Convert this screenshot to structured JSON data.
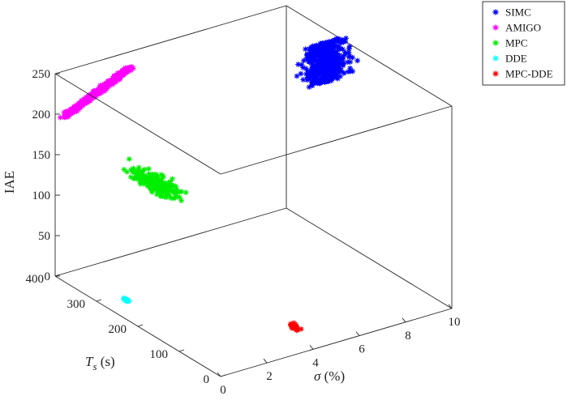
{
  "chart_data": {
    "type": "scatter3d",
    "title": "",
    "xlabel": "σ (%)",
    "ylabel": "T_s (s)",
    "zlabel": "IAE",
    "xlabel_parts": {
      "symbol": "σ",
      "unit": " (%)"
    },
    "ylabel_parts": {
      "symbol": "T",
      "sub": "s",
      "unit": " (s)"
    },
    "xlim": [
      0,
      10
    ],
    "ylim": [
      0,
      400
    ],
    "zlim": [
      0,
      250
    ],
    "xticks": [
      "0",
      "2",
      "4",
      "6",
      "8",
      "10"
    ],
    "yticks": [
      "0",
      "100",
      "200",
      "300",
      "400"
    ],
    "zticks": [
      "0",
      "50",
      "100",
      "150",
      "200",
      "250"
    ],
    "grid": false,
    "box": true,
    "legend_position": "top-right",
    "series": [
      {
        "name": "SIMC",
        "color": "#0000ff",
        "marker": "asterisk",
        "cluster": {
          "type": "line",
          "from": [
            9.0,
            250,
            210
          ],
          "to": [
            9.0,
            250,
            260
          ],
          "spread": 0.4,
          "points": 520
        }
      },
      {
        "name": "AMIGO",
        "color": "#ff00ff",
        "marker": "asterisk",
        "cluster": {
          "type": "line",
          "from": [
            0.3,
            395,
            196
          ],
          "to": [
            3.1,
            395,
            232
          ],
          "spread": 0.1,
          "points": 620
        }
      },
      {
        "name": "MPC",
        "color": "#00ee00",
        "marker": "asterisk",
        "cluster": {
          "type": "blob",
          "center": [
            3.3,
            340,
            105
          ],
          "spread": 0.2,
          "points": 240
        }
      },
      {
        "name": "DDE",
        "color": "#00ffff",
        "marker": "asterisk",
        "cluster": {
          "type": "blob",
          "center": [
            0.95,
            280,
            0
          ],
          "spread": 0.025,
          "points": 16
        }
      },
      {
        "name": "MPC-DDE",
        "color": "#ff0000",
        "marker": "asterisk",
        "cluster": {
          "type": "blob",
          "center": [
            4.55,
            76,
            0
          ],
          "spread": 0.05,
          "points": 30
        }
      }
    ]
  }
}
